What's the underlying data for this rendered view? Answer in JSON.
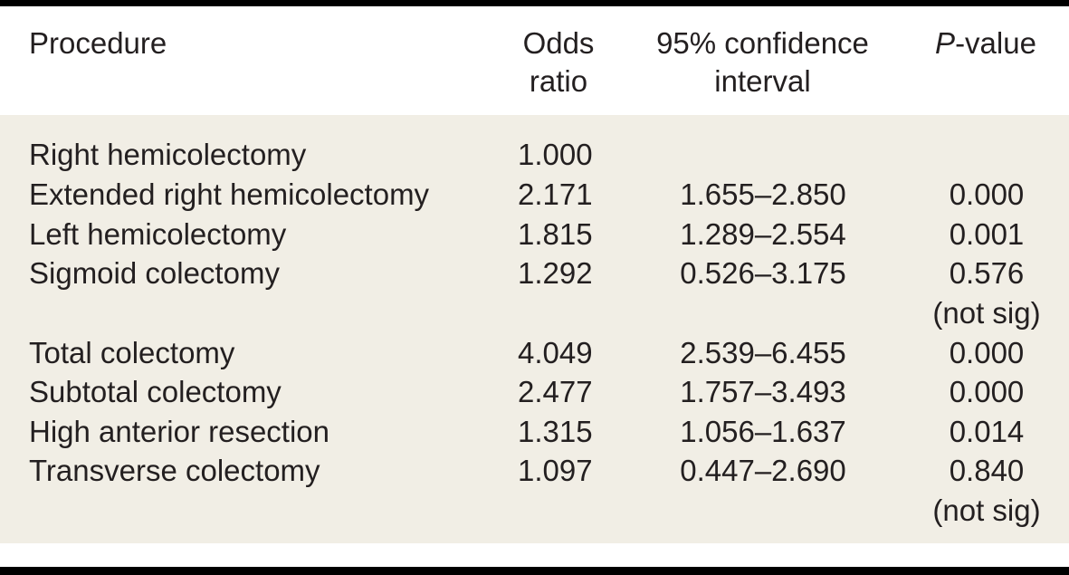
{
  "header": {
    "procedure": "Procedure",
    "odds_line1": "Odds",
    "odds_line2": "ratio",
    "ci_line1": "95% confidence",
    "ci_line2": "interval",
    "p_italic": "P",
    "p_rest": "-value"
  },
  "rows": [
    {
      "procedure": "Right hemicolectomy",
      "odds": "1.000",
      "ci": "",
      "p": "",
      "note": ""
    },
    {
      "procedure": "Extended right hemicolectomy",
      "odds": "2.171",
      "ci": "1.655–2.850",
      "p": "0.000",
      "note": ""
    },
    {
      "procedure": "Left hemicolectomy",
      "odds": "1.815",
      "ci": "1.289–2.554",
      "p": "0.001",
      "note": ""
    },
    {
      "procedure": "Sigmoid colectomy",
      "odds": "1.292",
      "ci": "0.526–3.175",
      "p": "0.576",
      "note": "(not sig)"
    },
    {
      "procedure": "Total colectomy",
      "odds": "4.049",
      "ci": "2.539–6.455",
      "p": "0.000",
      "note": ""
    },
    {
      "procedure": "Subtotal colectomy",
      "odds": "2.477",
      "ci": "1.757–3.493",
      "p": "0.000",
      "note": ""
    },
    {
      "procedure": "High anterior resection",
      "odds": "1.315",
      "ci": "1.056–1.637",
      "p": "0.014",
      "note": ""
    },
    {
      "procedure": "Transverse colectomy",
      "odds": "1.097",
      "ci": "0.447–2.690",
      "p": "0.840",
      "note": "(not sig)"
    }
  ]
}
